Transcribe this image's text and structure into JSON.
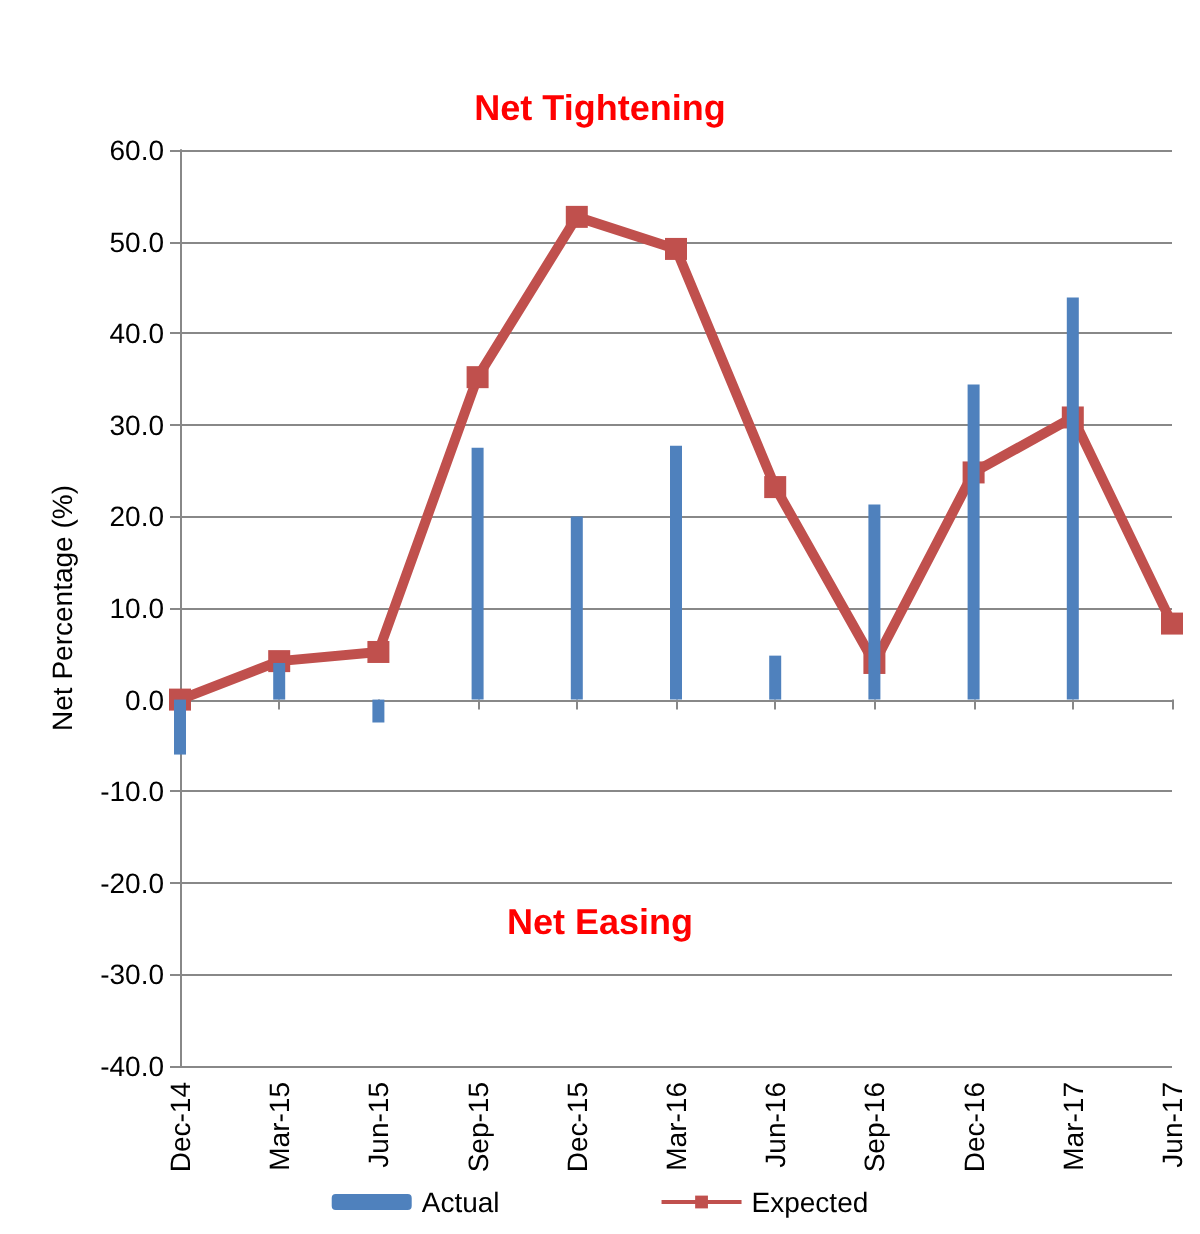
{
  "chart_data": {
    "type": "bar",
    "ylabel": "Net Percentage (%)",
    "categories": [
      "Dec-14",
      "Mar-15",
      "Jun-15",
      "Sep-15",
      "Dec-15",
      "Mar-16",
      "Jun-16",
      "Sep-16",
      "Dec-16",
      "Mar-17",
      "Jun-17"
    ],
    "series": [
      {
        "name": "Actual",
        "color": "#4f81bd",
        "values": [
          -6,
          4,
          -2.5,
          27.5,
          20,
          27.7,
          4.8,
          21.3,
          34.4,
          43.9,
          null
        ]
      },
      {
        "name": "Expected",
        "type": "line",
        "color": "#c0504d",
        "marker": "square",
        "values": [
          0,
          4.2,
          5.2,
          35.2,
          52.7,
          49.2,
          23.2,
          4,
          24.8,
          30.8,
          8.3
        ]
      }
    ],
    "ylim": [
      -40,
      60
    ],
    "yticks": [
      {
        "value": -40,
        "label": "-40.0"
      },
      {
        "value": -30,
        "label": "-30.0"
      },
      {
        "value": -20,
        "label": "-20.0"
      },
      {
        "value": -10,
        "label": "-10.0"
      },
      {
        "value": 0,
        "label": "0.0"
      },
      {
        "value": 10,
        "label": "10.0"
      },
      {
        "value": 20,
        "label": "20.0"
      },
      {
        "value": 30,
        "label": "30.0"
      },
      {
        "value": 40,
        "label": "40.0"
      },
      {
        "value": 50,
        "label": "50.0"
      },
      {
        "value": 60,
        "label": "60.0"
      }
    ],
    "annotations": [
      "Net Tightening",
      "Net Easing"
    ],
    "grid": "y",
    "legend": "bottom"
  }
}
